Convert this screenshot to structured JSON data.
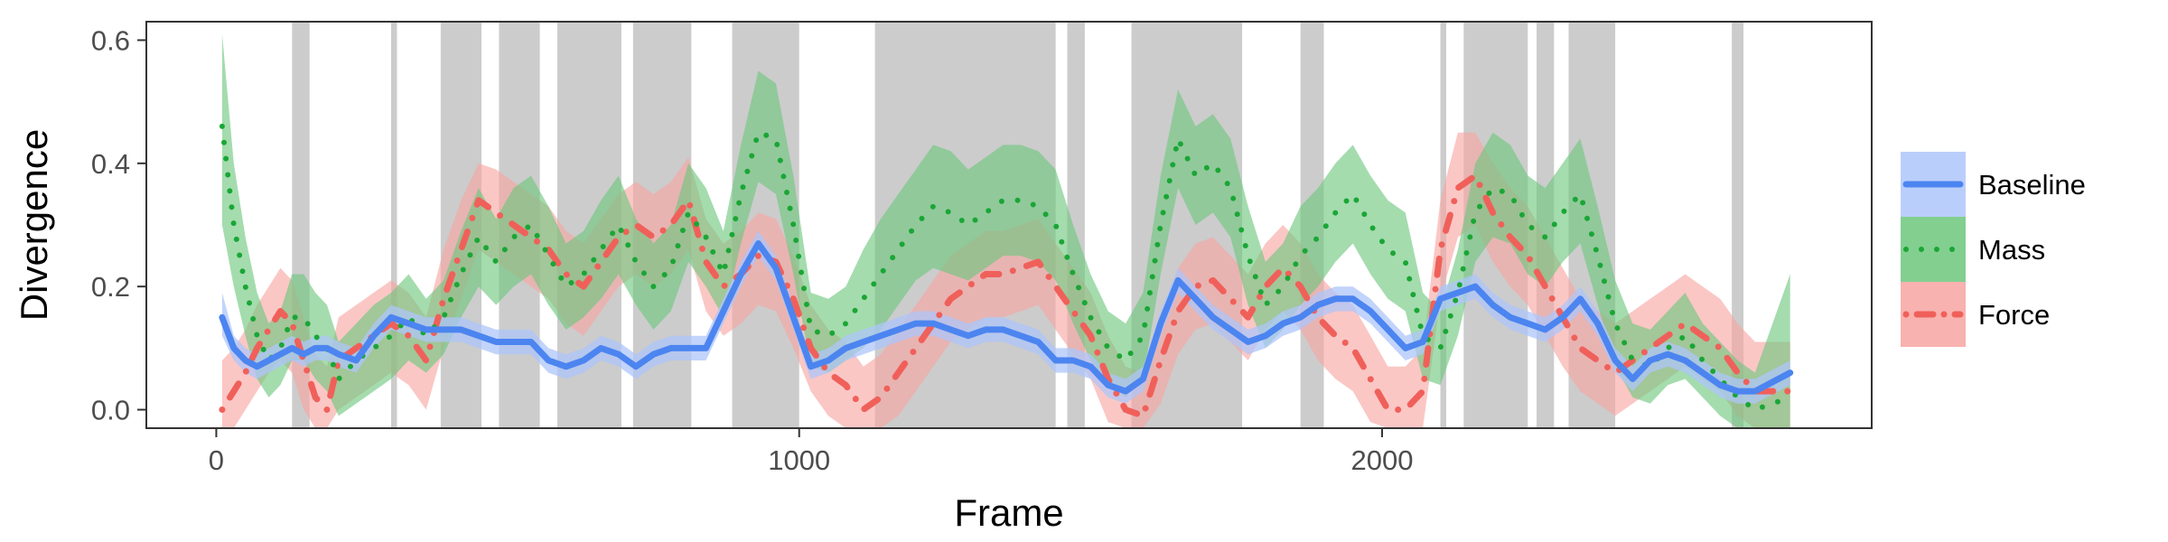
{
  "chart_data": {
    "type": "line",
    "title": "",
    "xlabel": "Frame",
    "ylabel": "Divergence",
    "xlim": [
      -120,
      2840
    ],
    "ylim": [
      -0.03,
      0.63
    ],
    "xticks": [
      0,
      1000,
      2000
    ],
    "xtick_labels": [
      "0",
      "1000",
      "2000"
    ],
    "yticks": [
      0.0,
      0.2,
      0.4,
      0.6
    ],
    "ytick_labels": [
      "0.0",
      "0.2",
      "0.4",
      "0.6"
    ],
    "grid": false,
    "legend_position": "right",
    "shaded_intervals": [
      [
        130,
        160
      ],
      [
        300,
        310
      ],
      [
        385,
        455
      ],
      [
        485,
        555
      ],
      [
        585,
        695
      ],
      [
        715,
        815
      ],
      [
        885,
        1000
      ],
      [
        1130,
        1440
      ],
      [
        1460,
        1490
      ],
      [
        1570,
        1760
      ],
      [
        1860,
        1900
      ],
      [
        2100,
        2110
      ],
      [
        2140,
        2250
      ],
      [
        2265,
        2295
      ],
      [
        2320,
        2400
      ],
      [
        2600,
        2620
      ]
    ],
    "x": [
      10,
      30,
      50,
      70,
      90,
      110,
      130,
      150,
      170,
      190,
      210,
      240,
      270,
      300,
      330,
      360,
      390,
      420,
      450,
      480,
      510,
      540,
      570,
      600,
      630,
      660,
      690,
      720,
      750,
      780,
      810,
      840,
      870,
      900,
      930,
      960,
      990,
      1020,
      1050,
      1080,
      1110,
      1140,
      1170,
      1200,
      1230,
      1260,
      1290,
      1320,
      1350,
      1380,
      1410,
      1440,
      1470,
      1500,
      1530,
      1560,
      1590,
      1620,
      1650,
      1680,
      1710,
      1740,
      1770,
      1800,
      1830,
      1860,
      1890,
      1920,
      1950,
      1980,
      2010,
      2040,
      2070,
      2100,
      2130,
      2160,
      2190,
      2220,
      2250,
      2280,
      2310,
      2340,
      2370,
      2400,
      2430,
      2460,
      2490,
      2520,
      2550,
      2580,
      2610,
      2640,
      2700
    ],
    "series": [
      {
        "name": "Baseline",
        "color": "#4c85f0",
        "band_color": "#aec6fa",
        "line_style": "solid",
        "values": [
          0.15,
          0.1,
          0.08,
          0.07,
          0.08,
          0.09,
          0.1,
          0.09,
          0.1,
          0.1,
          0.09,
          0.08,
          0.12,
          0.15,
          0.14,
          0.13,
          0.13,
          0.13,
          0.12,
          0.11,
          0.11,
          0.11,
          0.08,
          0.07,
          0.08,
          0.1,
          0.09,
          0.07,
          0.09,
          0.1,
          0.1,
          0.1,
          0.16,
          0.22,
          0.27,
          0.23,
          0.15,
          0.07,
          0.08,
          0.1,
          0.11,
          0.12,
          0.13,
          0.14,
          0.14,
          0.13,
          0.12,
          0.13,
          0.13,
          0.12,
          0.11,
          0.08,
          0.08,
          0.07,
          0.04,
          0.03,
          0.05,
          0.14,
          0.21,
          0.18,
          0.15,
          0.13,
          0.11,
          0.12,
          0.14,
          0.15,
          0.17,
          0.18,
          0.18,
          0.16,
          0.13,
          0.1,
          0.11,
          0.18,
          0.19,
          0.2,
          0.17,
          0.15,
          0.14,
          0.13,
          0.15,
          0.18,
          0.14,
          0.08,
          0.05,
          0.08,
          0.09,
          0.08,
          0.06,
          0.04,
          0.03,
          0.03,
          0.06
        ],
        "lower": [
          0.12,
          0.08,
          0.06,
          0.05,
          0.06,
          0.07,
          0.08,
          0.07,
          0.08,
          0.08,
          0.07,
          0.06,
          0.1,
          0.13,
          0.12,
          0.11,
          0.11,
          0.11,
          0.1,
          0.09,
          0.09,
          0.09,
          0.06,
          0.05,
          0.06,
          0.08,
          0.07,
          0.05,
          0.07,
          0.08,
          0.08,
          0.08,
          0.14,
          0.2,
          0.25,
          0.21,
          0.13,
          0.05,
          0.06,
          0.08,
          0.09,
          0.1,
          0.11,
          0.12,
          0.12,
          0.11,
          0.1,
          0.11,
          0.11,
          0.1,
          0.09,
          0.06,
          0.06,
          0.05,
          0.02,
          0.01,
          0.03,
          0.12,
          0.19,
          0.16,
          0.13,
          0.11,
          0.09,
          0.1,
          0.12,
          0.13,
          0.15,
          0.16,
          0.16,
          0.14,
          0.11,
          0.08,
          0.09,
          0.16,
          0.17,
          0.18,
          0.15,
          0.13,
          0.12,
          0.11,
          0.13,
          0.16,
          0.12,
          0.06,
          0.03,
          0.06,
          0.07,
          0.06,
          0.04,
          0.02,
          0.01,
          0.01,
          0.04
        ],
        "upper": [
          0.19,
          0.12,
          0.1,
          0.09,
          0.1,
          0.11,
          0.12,
          0.11,
          0.12,
          0.12,
          0.11,
          0.1,
          0.14,
          0.17,
          0.16,
          0.15,
          0.15,
          0.15,
          0.14,
          0.13,
          0.13,
          0.13,
          0.1,
          0.09,
          0.1,
          0.12,
          0.11,
          0.09,
          0.11,
          0.12,
          0.12,
          0.12,
          0.18,
          0.24,
          0.29,
          0.25,
          0.17,
          0.09,
          0.1,
          0.12,
          0.13,
          0.14,
          0.15,
          0.16,
          0.16,
          0.15,
          0.14,
          0.15,
          0.15,
          0.14,
          0.13,
          0.1,
          0.1,
          0.09,
          0.06,
          0.05,
          0.07,
          0.16,
          0.23,
          0.2,
          0.17,
          0.15,
          0.13,
          0.14,
          0.16,
          0.17,
          0.19,
          0.2,
          0.2,
          0.18,
          0.15,
          0.12,
          0.13,
          0.2,
          0.21,
          0.22,
          0.19,
          0.17,
          0.16,
          0.15,
          0.17,
          0.2,
          0.16,
          0.1,
          0.07,
          0.1,
          0.11,
          0.1,
          0.08,
          0.06,
          0.05,
          0.05,
          0.08
        ]
      },
      {
        "name": "Mass",
        "color": "#1aa635",
        "band_color": "#6cc77c",
        "line_style": "dotted",
        "values": [
          0.46,
          0.3,
          0.2,
          0.12,
          0.08,
          0.1,
          0.15,
          0.15,
          0.12,
          0.1,
          0.05,
          0.08,
          0.1,
          0.12,
          0.15,
          0.12,
          0.15,
          0.22,
          0.28,
          0.24,
          0.28,
          0.3,
          0.25,
          0.2,
          0.22,
          0.26,
          0.3,
          0.24,
          0.2,
          0.23,
          0.32,
          0.28,
          0.22,
          0.35,
          0.45,
          0.44,
          0.3,
          0.13,
          0.12,
          0.14,
          0.18,
          0.22,
          0.26,
          0.3,
          0.33,
          0.32,
          0.3,
          0.32,
          0.34,
          0.34,
          0.33,
          0.3,
          0.22,
          0.15,
          0.1,
          0.08,
          0.12,
          0.3,
          0.44,
          0.38,
          0.4,
          0.36,
          0.25,
          0.17,
          0.2,
          0.25,
          0.28,
          0.32,
          0.35,
          0.3,
          0.26,
          0.24,
          0.12,
          0.1,
          0.19,
          0.32,
          0.36,
          0.35,
          0.3,
          0.28,
          0.32,
          0.35,
          0.25,
          0.14,
          0.08,
          0.07,
          0.1,
          0.12,
          0.08,
          0.05,
          0.02,
          0.0,
          0.02
        ],
        "lower": [
          0.3,
          0.2,
          0.12,
          0.05,
          0.02,
          0.04,
          0.08,
          0.08,
          0.05,
          0.03,
          -0.01,
          0.01,
          0.03,
          0.05,
          0.08,
          0.06,
          0.09,
          0.15,
          0.2,
          0.17,
          0.2,
          0.22,
          0.17,
          0.13,
          0.15,
          0.18,
          0.22,
          0.17,
          0.13,
          0.16,
          0.24,
          0.2,
          0.15,
          0.27,
          0.37,
          0.35,
          0.22,
          0.07,
          0.06,
          0.08,
          0.1,
          0.13,
          0.17,
          0.21,
          0.23,
          0.22,
          0.21,
          0.23,
          0.25,
          0.25,
          0.24,
          0.21,
          0.14,
          0.08,
          0.04,
          0.02,
          0.05,
          0.22,
          0.36,
          0.3,
          0.32,
          0.28,
          0.17,
          0.1,
          0.13,
          0.17,
          0.2,
          0.24,
          0.27,
          0.22,
          0.18,
          0.16,
          0.05,
          0.04,
          0.12,
          0.24,
          0.28,
          0.27,
          0.22,
          0.2,
          0.24,
          0.27,
          0.17,
          0.07,
          0.02,
          0.01,
          0.04,
          0.05,
          0.02,
          -0.01,
          -0.03,
          -0.03,
          -0.03
        ],
        "upper": [
          0.61,
          0.4,
          0.28,
          0.19,
          0.14,
          0.16,
          0.22,
          0.22,
          0.19,
          0.17,
          0.11,
          0.14,
          0.17,
          0.19,
          0.22,
          0.18,
          0.21,
          0.29,
          0.36,
          0.31,
          0.36,
          0.38,
          0.33,
          0.27,
          0.29,
          0.34,
          0.38,
          0.31,
          0.27,
          0.3,
          0.4,
          0.36,
          0.29,
          0.43,
          0.55,
          0.53,
          0.38,
          0.19,
          0.18,
          0.2,
          0.26,
          0.31,
          0.35,
          0.39,
          0.43,
          0.42,
          0.39,
          0.41,
          0.43,
          0.43,
          0.42,
          0.39,
          0.3,
          0.22,
          0.16,
          0.14,
          0.19,
          0.38,
          0.52,
          0.46,
          0.48,
          0.44,
          0.33,
          0.24,
          0.27,
          0.33,
          0.36,
          0.4,
          0.43,
          0.38,
          0.34,
          0.32,
          0.19,
          0.16,
          0.26,
          0.4,
          0.45,
          0.43,
          0.38,
          0.36,
          0.4,
          0.44,
          0.33,
          0.21,
          0.14,
          0.13,
          0.16,
          0.19,
          0.14,
          0.11,
          0.08,
          0.06,
          0.22
        ]
      },
      {
        "name": "Force",
        "color": "#f0605a",
        "band_color": "#f7a5a1",
        "line_style": "dotdash",
        "values": [
          0.0,
          0.03,
          0.06,
          0.1,
          0.13,
          0.16,
          0.14,
          0.08,
          0.02,
          0.0,
          0.08,
          0.1,
          0.12,
          0.14,
          0.12,
          0.08,
          0.18,
          0.26,
          0.34,
          0.32,
          0.3,
          0.28,
          0.26,
          0.22,
          0.2,
          0.24,
          0.28,
          0.3,
          0.28,
          0.3,
          0.34,
          0.24,
          0.2,
          0.22,
          0.25,
          0.24,
          0.18,
          0.1,
          0.06,
          0.04,
          0.0,
          0.02,
          0.06,
          0.1,
          0.14,
          0.18,
          0.2,
          0.22,
          0.22,
          0.23,
          0.24,
          0.2,
          0.16,
          0.12,
          0.05,
          0.0,
          -0.01,
          0.08,
          0.16,
          0.2,
          0.21,
          0.18,
          0.15,
          0.2,
          0.23,
          0.2,
          0.15,
          0.12,
          0.1,
          0.05,
          0.0,
          0.0,
          0.03,
          0.26,
          0.36,
          0.38,
          0.32,
          0.28,
          0.25,
          0.2,
          0.15,
          0.1,
          0.08,
          0.06,
          0.08,
          0.1,
          0.12,
          0.14,
          0.12,
          0.1,
          0.06,
          0.03,
          0.03
        ],
        "lower": [
          -0.03,
          -0.03,
          0.0,
          0.03,
          0.06,
          0.08,
          0.06,
          0.0,
          -0.03,
          -0.03,
          0.0,
          0.02,
          0.04,
          0.06,
          0.04,
          0.0,
          0.1,
          0.18,
          0.26,
          0.24,
          0.22,
          0.2,
          0.18,
          0.14,
          0.12,
          0.16,
          0.2,
          0.22,
          0.2,
          0.22,
          0.26,
          0.16,
          0.12,
          0.14,
          0.17,
          0.16,
          0.1,
          0.03,
          -0.01,
          -0.03,
          -0.03,
          -0.03,
          -0.01,
          0.03,
          0.07,
          0.11,
          0.13,
          0.15,
          0.15,
          0.16,
          0.17,
          0.13,
          0.09,
          0.05,
          -0.02,
          -0.03,
          -0.03,
          0.01,
          0.09,
          0.13,
          0.14,
          0.11,
          0.08,
          0.13,
          0.16,
          0.13,
          0.08,
          0.05,
          0.03,
          -0.02,
          -0.03,
          -0.03,
          -0.03,
          0.18,
          0.28,
          0.3,
          0.24,
          0.2,
          0.17,
          0.12,
          0.07,
          0.03,
          0.01,
          -0.01,
          0.01,
          0.03,
          0.05,
          0.07,
          0.05,
          0.03,
          -0.01,
          -0.03,
          -0.03
        ],
        "upper": [
          0.08,
          0.1,
          0.13,
          0.17,
          0.2,
          0.23,
          0.21,
          0.15,
          0.09,
          0.07,
          0.15,
          0.17,
          0.19,
          0.21,
          0.19,
          0.15,
          0.26,
          0.34,
          0.4,
          0.39,
          0.37,
          0.35,
          0.33,
          0.29,
          0.27,
          0.31,
          0.35,
          0.37,
          0.35,
          0.37,
          0.41,
          0.31,
          0.27,
          0.29,
          0.32,
          0.31,
          0.25,
          0.17,
          0.13,
          0.11,
          0.07,
          0.09,
          0.13,
          0.17,
          0.21,
          0.25,
          0.27,
          0.29,
          0.29,
          0.3,
          0.31,
          0.27,
          0.23,
          0.19,
          0.12,
          0.07,
          0.06,
          0.15,
          0.23,
          0.27,
          0.28,
          0.25,
          0.22,
          0.27,
          0.3,
          0.27,
          0.22,
          0.19,
          0.17,
          0.12,
          0.07,
          0.07,
          0.1,
          0.34,
          0.45,
          0.45,
          0.4,
          0.36,
          0.33,
          0.28,
          0.23,
          0.18,
          0.16,
          0.14,
          0.16,
          0.18,
          0.2,
          0.22,
          0.2,
          0.18,
          0.14,
          0.11,
          0.11
        ]
      }
    ]
  }
}
